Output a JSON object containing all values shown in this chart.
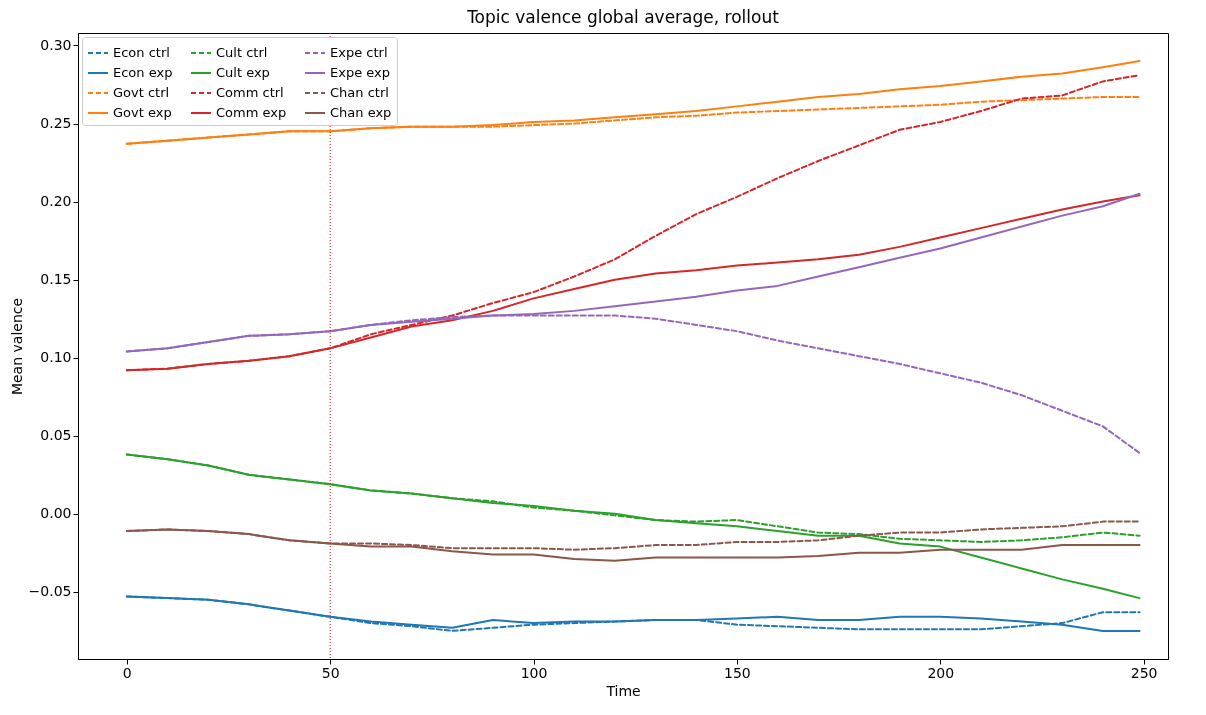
{
  "chart_data": {
    "type": "line",
    "title": "Topic valence global average, rollout",
    "xlabel": "Time",
    "ylabel": "Mean valence",
    "x": [
      0,
      10,
      20,
      30,
      40,
      50,
      60,
      70,
      80,
      90,
      100,
      110,
      120,
      130,
      140,
      150,
      160,
      170,
      180,
      190,
      200,
      210,
      220,
      230,
      240,
      249
    ],
    "series": [
      {
        "name": "Econ ctrl",
        "color": "#1f77b4",
        "line_style": "dashed",
        "values": [
          -0.053,
          -0.054,
          -0.055,
          -0.058,
          -0.062,
          -0.066,
          -0.07,
          -0.072,
          -0.075,
          -0.073,
          -0.071,
          -0.07,
          -0.069,
          -0.068,
          -0.068,
          -0.071,
          -0.072,
          -0.073,
          -0.074,
          -0.074,
          -0.074,
          -0.074,
          -0.072,
          -0.07,
          -0.063,
          -0.063
        ]
      },
      {
        "name": "Econ exp",
        "color": "#1f77b4",
        "line_style": "solid",
        "values": [
          -0.053,
          -0.054,
          -0.055,
          -0.058,
          -0.062,
          -0.066,
          -0.069,
          -0.071,
          -0.073,
          -0.068,
          -0.07,
          -0.069,
          -0.069,
          -0.068,
          -0.068,
          -0.067,
          -0.066,
          -0.068,
          -0.068,
          -0.066,
          -0.066,
          -0.067,
          -0.069,
          -0.071,
          -0.075,
          -0.075
        ]
      },
      {
        "name": "Govt ctrl",
        "color": "#ff7f0e",
        "line_style": "dashed",
        "values": [
          0.237,
          0.239,
          0.241,
          0.243,
          0.245,
          0.245,
          0.247,
          0.248,
          0.248,
          0.248,
          0.249,
          0.25,
          0.252,
          0.254,
          0.255,
          0.257,
          0.258,
          0.259,
          0.26,
          0.261,
          0.262,
          0.264,
          0.265,
          0.266,
          0.267,
          0.267
        ]
      },
      {
        "name": "Govt exp",
        "color": "#ff7f0e",
        "line_style": "solid",
        "values": [
          0.237,
          0.239,
          0.241,
          0.243,
          0.245,
          0.245,
          0.247,
          0.248,
          0.248,
          0.249,
          0.251,
          0.252,
          0.254,
          0.256,
          0.258,
          0.261,
          0.264,
          0.267,
          0.269,
          0.272,
          0.274,
          0.277,
          0.28,
          0.282,
          0.286,
          0.29
        ]
      },
      {
        "name": "Cult ctrl",
        "color": "#2ca02c",
        "line_style": "dashed",
        "values": [
          0.038,
          0.035,
          0.031,
          0.025,
          0.022,
          0.019,
          0.015,
          0.013,
          0.01,
          0.008,
          0.004,
          0.002,
          -0.001,
          -0.004,
          -0.005,
          -0.004,
          -0.008,
          -0.012,
          -0.013,
          -0.016,
          -0.017,
          -0.018,
          -0.017,
          -0.015,
          -0.012,
          -0.014
        ]
      },
      {
        "name": "Cult exp",
        "color": "#2ca02c",
        "line_style": "solid",
        "values": [
          0.038,
          0.035,
          0.031,
          0.025,
          0.022,
          0.019,
          0.015,
          0.013,
          0.01,
          0.007,
          0.005,
          0.002,
          0.0,
          -0.004,
          -0.006,
          -0.008,
          -0.011,
          -0.014,
          -0.014,
          -0.019,
          -0.021,
          -0.028,
          -0.035,
          -0.042,
          -0.048,
          -0.054
        ]
      },
      {
        "name": "Comm ctrl",
        "color": "#d62728",
        "line_style": "dashed",
        "values": [
          0.092,
          0.093,
          0.096,
          0.098,
          0.101,
          0.106,
          0.115,
          0.121,
          0.127,
          0.135,
          0.142,
          0.152,
          0.163,
          0.178,
          0.192,
          0.203,
          0.215,
          0.226,
          0.236,
          0.246,
          0.251,
          0.258,
          0.266,
          0.268,
          0.277,
          0.281
        ]
      },
      {
        "name": "Comm exp",
        "color": "#d62728",
        "line_style": "solid",
        "values": [
          0.092,
          0.093,
          0.096,
          0.098,
          0.101,
          0.106,
          0.113,
          0.12,
          0.124,
          0.13,
          0.138,
          0.144,
          0.15,
          0.154,
          0.156,
          0.159,
          0.161,
          0.163,
          0.166,
          0.171,
          0.177,
          0.183,
          0.189,
          0.195,
          0.2,
          0.204
        ]
      },
      {
        "name": "Expe ctrl",
        "color": "#9467bd",
        "line_style": "dashed",
        "values": [
          0.104,
          0.106,
          0.11,
          0.114,
          0.115,
          0.117,
          0.121,
          0.124,
          0.126,
          0.127,
          0.127,
          0.127,
          0.127,
          0.125,
          0.121,
          0.117,
          0.111,
          0.106,
          0.101,
          0.096,
          0.09,
          0.084,
          0.076,
          0.066,
          0.056,
          0.039
        ]
      },
      {
        "name": "Expe exp",
        "color": "#9467bd",
        "line_style": "solid",
        "values": [
          0.104,
          0.106,
          0.11,
          0.114,
          0.115,
          0.117,
          0.121,
          0.123,
          0.125,
          0.127,
          0.128,
          0.13,
          0.133,
          0.136,
          0.139,
          0.143,
          0.146,
          0.152,
          0.158,
          0.164,
          0.17,
          0.177,
          0.184,
          0.191,
          0.197,
          0.205
        ]
      },
      {
        "name": "Chan ctrl",
        "color": "#8c564b",
        "line_style": "dashed",
        "values": [
          -0.011,
          -0.01,
          -0.011,
          -0.013,
          -0.017,
          -0.019,
          -0.019,
          -0.02,
          -0.022,
          -0.022,
          -0.022,
          -0.023,
          -0.022,
          -0.02,
          -0.02,
          -0.018,
          -0.018,
          -0.017,
          -0.014,
          -0.012,
          -0.012,
          -0.01,
          -0.009,
          -0.008,
          -0.005,
          -0.005
        ]
      },
      {
        "name": "Chan exp",
        "color": "#8c564b",
        "line_style": "solid",
        "values": [
          -0.011,
          -0.01,
          -0.011,
          -0.013,
          -0.017,
          -0.019,
          -0.021,
          -0.021,
          -0.024,
          -0.026,
          -0.026,
          -0.029,
          -0.03,
          -0.028,
          -0.028,
          -0.028,
          -0.028,
          -0.027,
          -0.025,
          -0.025,
          -0.023,
          -0.023,
          -0.023,
          -0.02,
          -0.02,
          -0.02
        ]
      }
    ],
    "ref_lines": [
      {
        "axis": "x",
        "value": 50,
        "color": "#ff0000",
        "line_style": "dotted"
      }
    ],
    "xlim": [
      -12,
      256
    ],
    "xticks": [
      0,
      50,
      100,
      150,
      200,
      250
    ],
    "ylim": [
      -0.093,
      0.308
    ],
    "yticks": [
      {
        "value": -0.05,
        "label": "−0.05"
      },
      {
        "value": 0,
        "label": "0.00"
      },
      {
        "value": 0.05,
        "label": "0.05"
      },
      {
        "value": 0.1,
        "label": "0.10"
      },
      {
        "value": 0.15,
        "label": "0.15"
      },
      {
        "value": 0.2,
        "label": "0.20"
      },
      {
        "value": 0.25,
        "label": "0.25"
      },
      {
        "value": 0.3,
        "label": "0.30"
      }
    ],
    "grid": false,
    "legend": "top left"
  }
}
